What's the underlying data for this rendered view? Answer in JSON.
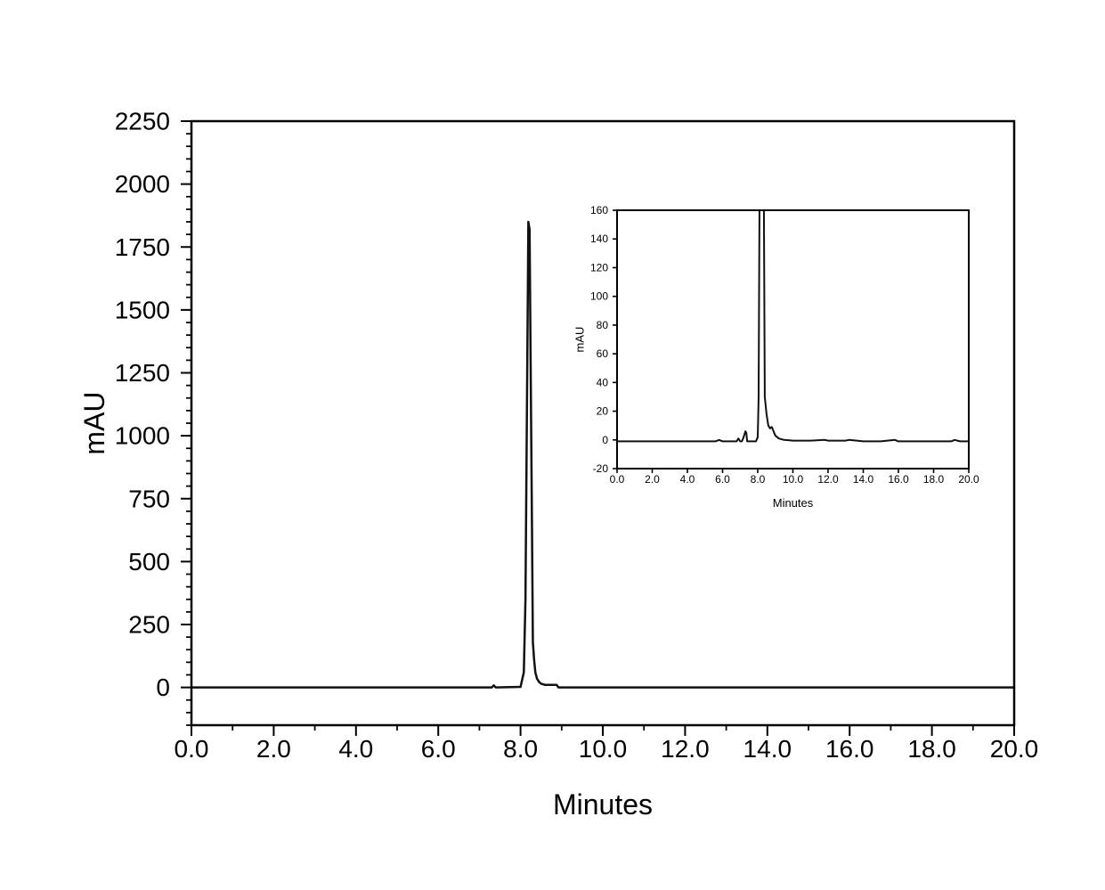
{
  "chart_data": [
    {
      "id": "main",
      "type": "line",
      "xlabel": "Minutes",
      "ylabel": "mAU",
      "xlim": [
        0,
        20
      ],
      "ylim": [
        -150,
        2250
      ],
      "x_ticks": [
        0,
        2,
        4,
        6,
        8,
        10,
        12,
        14,
        16,
        18,
        20
      ],
      "x_tick_labels": [
        "0.0",
        "2.0",
        "4.0",
        "6.0",
        "8.0",
        "10.0",
        "12.0",
        "14.0",
        "16.0",
        "18.0",
        "20.0"
      ],
      "y_ticks": [
        0,
        250,
        500,
        750,
        1000,
        1250,
        1500,
        1750,
        2000,
        2250
      ],
      "y_tick_labels": [
        "0",
        "250",
        "500",
        "750",
        "1000",
        "1250",
        "1500",
        "1750",
        "2000",
        "2250"
      ],
      "grid": false,
      "series": [
        {
          "color": "#111111",
          "x": [
            0.0,
            7.3,
            7.35,
            7.4,
            8.0,
            8.08,
            8.12,
            8.16,
            8.19,
            8.22,
            8.24,
            8.26,
            8.28,
            8.3,
            8.33,
            8.36,
            8.4,
            8.45,
            8.5,
            8.6,
            8.88,
            8.92,
            20.0
          ],
          "y": [
            0,
            0,
            8,
            0,
            2,
            60,
            350,
            1200,
            1850,
            1820,
            1400,
            1000,
            600,
            180,
            110,
            60,
            35,
            22,
            15,
            10,
            10,
            0,
            0
          ]
        }
      ]
    },
    {
      "id": "inset",
      "type": "line",
      "xlabel": "Minutes",
      "ylabel": "mAU",
      "xlim": [
        0,
        20
      ],
      "ylim": [
        -20,
        160
      ],
      "x_ticks": [
        0,
        2,
        4,
        6,
        8,
        10,
        12,
        14,
        16,
        18,
        20
      ],
      "x_tick_labels": [
        "0.0",
        "2.0",
        "4.0",
        "6.0",
        "8.0",
        "10.0",
        "12.0",
        "14.0",
        "16.0",
        "18.0",
        "20.0"
      ],
      "y_ticks": [
        -20,
        0,
        20,
        40,
        60,
        80,
        100,
        120,
        140,
        160
      ],
      "y_tick_labels": [
        "-20",
        "0",
        "20",
        "40",
        "60",
        "80",
        "100",
        "120",
        "140",
        "160"
      ],
      "grid": false,
      "series": [
        {
          "color": "#111111",
          "x": [
            0.0,
            5.6,
            5.8,
            6.0,
            6.8,
            6.9,
            7.0,
            7.1,
            7.2,
            7.3,
            7.35,
            7.4,
            7.5,
            7.9,
            8.0,
            8.05,
            8.1,
            8.15,
            8.3,
            8.35,
            8.4,
            8.5,
            8.6,
            8.7,
            8.8,
            8.9,
            9.0,
            9.2,
            9.5,
            10.0,
            11.0,
            11.8,
            12.0,
            13.0,
            13.2,
            14.0,
            15.0,
            15.8,
            16.0,
            19.0,
            19.2,
            19.5,
            20.2
          ],
          "y": [
            -1,
            -1,
            0,
            -1,
            -1,
            1,
            -1,
            -1,
            2,
            6,
            5,
            -1,
            -1,
            -1,
            2,
            30,
            165,
            165,
            165,
            165,
            30,
            18,
            10,
            8,
            9,
            6,
            3,
            1,
            0,
            -0.5,
            -0.5,
            0,
            -0.5,
            -0.5,
            0,
            -1,
            -1,
            0,
            -1,
            -1,
            0,
            -1,
            -1
          ]
        }
      ]
    }
  ]
}
